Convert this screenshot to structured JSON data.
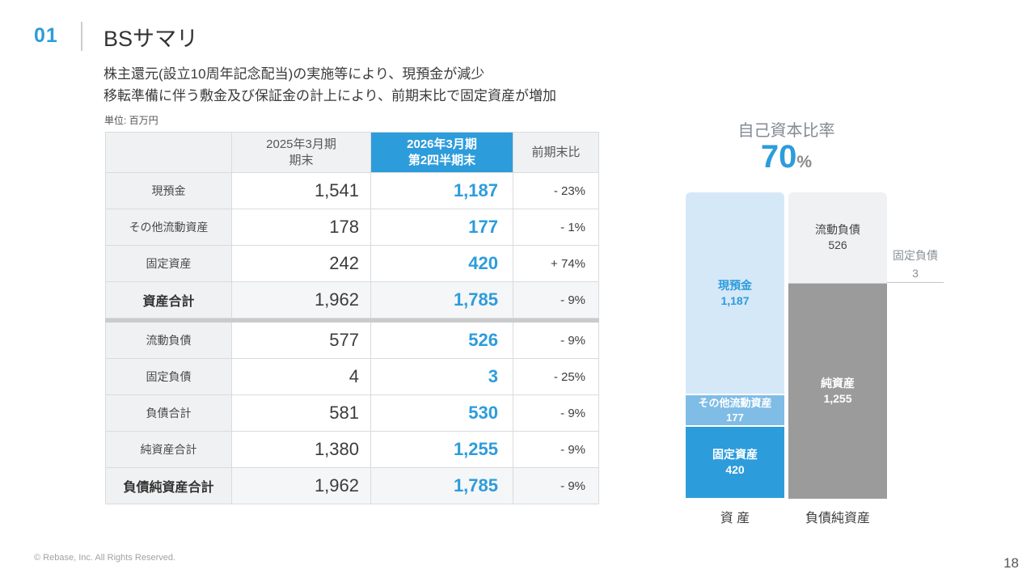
{
  "header": {
    "number": "01",
    "title": "BSサマリ"
  },
  "summary": {
    "line1": "株主還元(設立10周年記念配当)の実施等により、現預金が減少",
    "line2": "移転準備に伴う敷金及び保証金の計上により、前期末比で固定資産が増加"
  },
  "table": {
    "unit_note": "単位: 百万円",
    "columns": [
      "",
      "2025年3月期\n期末",
      "2026年3月期\n第2四半期末",
      "前期末比"
    ],
    "rows": [
      {
        "label": "現預金",
        "prev": "1,541",
        "curr": "1,187",
        "change": "- 23%",
        "total": false
      },
      {
        "label": "その他流動資産",
        "prev": "178",
        "curr": "177",
        "change": "- 1%",
        "total": false
      },
      {
        "label": "固定資産",
        "prev": "242",
        "curr": "420",
        "change": "+ 74%",
        "total": false
      },
      {
        "label": "資産合計",
        "prev": "1,962",
        "curr": "1,785",
        "change": "- 9%",
        "total": true
      },
      {
        "label": "流動負債",
        "prev": "577",
        "curr": "526",
        "change": "- 9%",
        "total": false,
        "divider_before": true
      },
      {
        "label": "固定負債",
        "prev": "4",
        "curr": "3",
        "change": "- 25%",
        "total": false
      },
      {
        "label": "負債合計",
        "prev": "581",
        "curr": "530",
        "change": "- 9%",
        "total": false
      },
      {
        "label": "純資産合計",
        "prev": "1,380",
        "curr": "1,255",
        "change": "- 9%",
        "total": false
      },
      {
        "label": "負債純資産合計",
        "prev": "1,962",
        "curr": "1,785",
        "change": "- 9%",
        "total": true
      }
    ]
  },
  "chart_data": {
    "type": "bar",
    "subtype": "stacked-bar-pair",
    "title": "自己資本比率",
    "ratio": {
      "value": "70",
      "unit": "%"
    },
    "total": 1785,
    "categories": [
      "資 産",
      "負債純資産"
    ],
    "legend_position": "inside-segments",
    "series": [
      {
        "name": "資 産",
        "segments": [
          {
            "label": "現預金",
            "value": 1187,
            "value_display": "1,187",
            "color": "#D5E8F8",
            "text_color": "#2D9CDB",
            "bold": true
          },
          {
            "label": "その他流動資産",
            "value": 177,
            "value_display": "177",
            "color": "#7FBCE6",
            "text_color": "#ffffff",
            "bold": true,
            "small": true
          },
          {
            "label": "固定資産",
            "value": 420,
            "value_display": "420",
            "color": "#2D9CDB",
            "text_color": "#ffffff",
            "bold": true
          }
        ]
      },
      {
        "name": "負債純資産",
        "segments": [
          {
            "label": "流動負債",
            "value": 526,
            "value_display": "526",
            "color": "#F0F1F2",
            "text_color": "#444444",
            "bold": false
          },
          {
            "label": "固定負債",
            "value": 3,
            "value_display": "3",
            "color": "#CDD0D2",
            "show_label": false,
            "annotation": true
          },
          {
            "label": "純資産",
            "value": 1255,
            "value_display": "1,255",
            "color": "#9B9B9B",
            "text_color": "#ffffff",
            "bold": true
          }
        ]
      }
    ]
  },
  "colors": {
    "accent": "#2D9CDB",
    "table_header_bg": "#F0F1F2",
    "divider": "#C9CBCD",
    "net_assets_gray": "#9B9B9B"
  },
  "footer": {
    "copyright": "© Rebase, Inc. All Rights Reserved.",
    "page_no": "18"
  }
}
